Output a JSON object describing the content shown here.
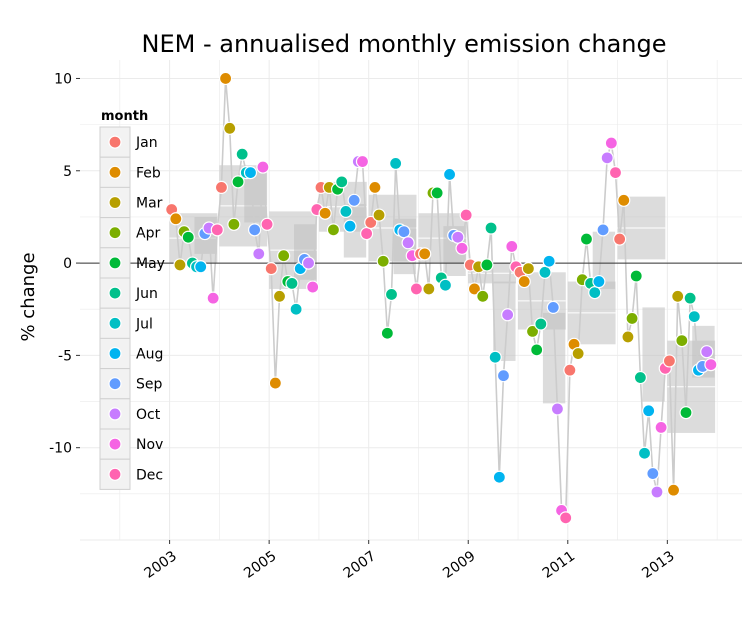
{
  "chart_data": {
    "type": "scatter",
    "title": "NEM - annualised monthly emission change",
    "xlabel": "",
    "ylabel": "% change",
    "xlim": [
      2001.2,
      2014.5
    ],
    "ylim": [
      -15,
      11
    ],
    "x_ticks": [
      2003,
      2005,
      2007,
      2009,
      2011,
      2013
    ],
    "x_tick_labels": [
      "2003",
      "2005",
      "2007",
      "2009",
      "2011",
      "2013"
    ],
    "y_ticks": [
      10,
      5,
      0,
      -5,
      -10
    ],
    "y_tick_labels": [
      "10",
      "5",
      "0",
      "-5",
      "-10"
    ],
    "reference_line_y": 0,
    "grid": true,
    "legend": {
      "title": "month",
      "position": "top-left",
      "entries": [
        "Jan",
        "Feb",
        "Mar",
        "Apr",
        "May",
        "Jun",
        "Jul",
        "Aug",
        "Sep",
        "Oct",
        "Nov",
        "Dec"
      ]
    },
    "colors": {
      "Jan": "#F8766D",
      "Feb": "#DE8C00",
      "Mar": "#B79F00",
      "Apr": "#7CAE00",
      "May": "#00BA38",
      "Jun": "#00C08B",
      "Jul": "#00BFC4",
      "Aug": "#00B4F0",
      "Sep": "#619CFF",
      "Oct": "#C77CFF",
      "Nov": "#F564E3",
      "Dec": "#FF64B0",
      "line": "#CCCCCC",
      "box": "#BFBFBF",
      "panel": "#FFFFFF",
      "grid": "#EBEBEB"
    },
    "start_year": 2003,
    "values": [
      2.9,
      2.4,
      -0.1,
      1.7,
      1.4,
      0.0,
      -0.2,
      -0.2,
      1.6,
      1.9,
      -1.9,
      1.8,
      4.1,
      10.0,
      7.3,
      2.1,
      4.4,
      5.9,
      4.9,
      4.9,
      1.8,
      0.5,
      5.2,
      2.1,
      -0.3,
      -6.5,
      -1.8,
      0.4,
      -1.0,
      -1.1,
      -2.5,
      -0.3,
      0.2,
      0.0,
      -1.3,
      2.9,
      4.1,
      2.7,
      4.1,
      1.8,
      4.0,
      4.4,
      2.8,
      2.0,
      3.4,
      5.5,
      5.5,
      1.6,
      2.2,
      4.1,
      2.6,
      0.1,
      -3.8,
      -1.7,
      5.4,
      1.8,
      1.7,
      1.1,
      0.4,
      -1.4,
      0.5,
      0.5,
      -1.4,
      3.8,
      3.8,
      -0.8,
      -1.2,
      4.8,
      1.5,
      1.4,
      0.8,
      2.6,
      -0.1,
      -1.4,
      -0.2,
      -1.8,
      -0.1,
      1.9,
      -5.1,
      -11.6,
      -6.1,
      -2.8,
      0.9,
      -0.2,
      -0.5,
      -1.0,
      -0.3,
      -3.7,
      -4.7,
      -3.3,
      -0.5,
      0.1,
      -2.4,
      -7.9,
      -13.4,
      -13.8,
      -5.8,
      -4.4,
      -4.9,
      -0.9,
      1.3,
      -1.1,
      -1.6,
      -1.0,
      1.8,
      5.7,
      6.5,
      4.9,
      1.3,
      3.4,
      -4.0,
      -3.0,
      -0.7,
      -6.2,
      -10.3,
      -8.0,
      -11.4,
      -12.4,
      -8.9,
      -5.7,
      -5.3,
      -12.3,
      -1.8,
      -4.2,
      -8.1,
      -1.9,
      -2.9,
      -5.8,
      -5.6,
      -4.8,
      -5.5
    ],
    "yearly_boxes": [
      {
        "year": 2003,
        "low": 0.0,
        "high": 2.7
      },
      {
        "year": 2004,
        "low": 0.9,
        "high": 5.3
      },
      {
        "year": 2005,
        "low": -1.4,
        "high": 2.8
      },
      {
        "year": 2006,
        "low": 1.7,
        "high": 4.4
      },
      {
        "year": 2007,
        "low": 0.1,
        "high": 3.7
      },
      {
        "year": 2008,
        "low": 0.0,
        "high": 2.7
      },
      {
        "year": 2009,
        "low": -1.1,
        "high": 0.0
      },
      {
        "year": 2010,
        "low": -3.6,
        "high": -0.5
      },
      {
        "year": 2011,
        "low": -4.4,
        "high": -1.0
      },
      {
        "year": 2012,
        "low": 0.2,
        "high": 3.6
      },
      {
        "year": 2013,
        "low": -9.2,
        "high": -4.2
      }
    ],
    "secondary_boxes": [
      {
        "year": 2003.5,
        "low": 0.5,
        "high": 2.5
      },
      {
        "year": 2004.5,
        "low": 2.2,
        "high": 5.0
      },
      {
        "year": 2005.5,
        "low": -0.9,
        "high": 2.1
      },
      {
        "year": 2006.5,
        "low": 0.3,
        "high": 3.2
      },
      {
        "year": 2007.5,
        "low": -0.6,
        "high": 2.4
      },
      {
        "year": 2008.5,
        "low": -0.7,
        "high": 2.0
      },
      {
        "year": 2009.5,
        "low": -5.3,
        "high": -1.0
      },
      {
        "year": 2010.5,
        "low": -7.6,
        "high": -2.7
      },
      {
        "year": 2011.5,
        "low": -1.4,
        "high": 1.7
      },
      {
        "year": 2012.5,
        "low": -7.5,
        "high": -2.4
      },
      {
        "year": 2013.5,
        "low": -6.2,
        "high": -3.4
      }
    ]
  }
}
